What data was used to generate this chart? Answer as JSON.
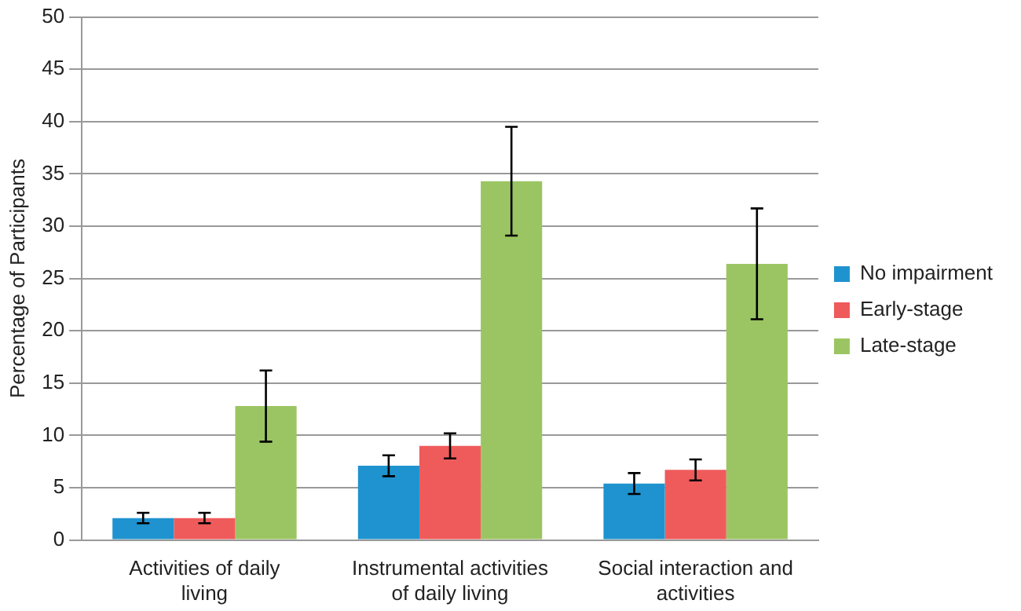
{
  "chart_data": {
    "type": "bar",
    "ylabel": "Percentage of Participants",
    "categories": [
      "Activities of daily living",
      "Instrumental activities of daily living",
      "Social interaction and activities"
    ],
    "series": [
      {
        "name": "No impairment",
        "color": "#1f93cf",
        "values": [
          2.1,
          7.1,
          5.4
        ],
        "errors": [
          0.5,
          1,
          1
        ]
      },
      {
        "name": "Early-stage",
        "color": "#ef5b5b",
        "values": [
          2.1,
          9.0,
          6.7
        ],
        "errors": [
          0.5,
          1.2,
          1
        ]
      },
      {
        "name": "Late-stage",
        "color": "#9bc563",
        "values": [
          12.8,
          34.3,
          26.4
        ],
        "errors": [
          3.4,
          5.2,
          5.3
        ]
      }
    ],
    "ylim": [
      0,
      50
    ],
    "yticks": [
      0,
      5,
      10,
      15,
      20,
      25,
      30,
      35,
      40,
      45,
      50
    ],
    "grid": "y",
    "legend": "right"
  }
}
